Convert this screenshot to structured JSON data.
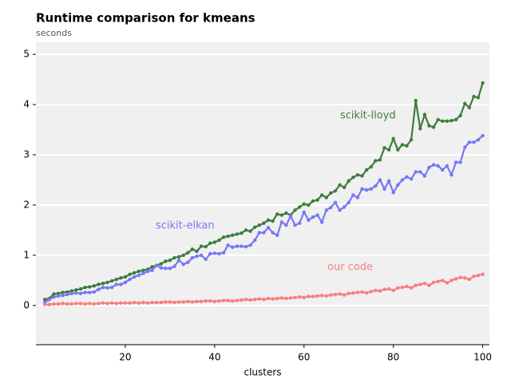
{
  "chart_data": {
    "type": "line",
    "title": "Runtime comparison for kmeans",
    "subtitle": "seconds",
    "x_label": "clusters",
    "x": [
      2,
      3,
      4,
      5,
      6,
      7,
      8,
      9,
      10,
      11,
      12,
      13,
      14,
      15,
      16,
      17,
      18,
      19,
      20,
      21,
      22,
      23,
      24,
      25,
      26,
      27,
      28,
      29,
      30,
      31,
      32,
      33,
      34,
      35,
      36,
      37,
      38,
      39,
      40,
      41,
      42,
      43,
      44,
      45,
      46,
      47,
      48,
      49,
      50,
      51,
      52,
      53,
      54,
      55,
      56,
      57,
      58,
      59,
      60,
      61,
      62,
      63,
      64,
      65,
      66,
      67,
      68,
      69,
      70,
      71,
      72,
      73,
      74,
      75,
      76,
      77,
      78,
      79,
      80,
      81,
      82,
      83,
      84,
      85,
      86,
      87,
      88,
      89,
      90,
      91,
      92,
      93,
      94,
      95,
      96,
      97,
      98,
      99,
      100
    ],
    "series": [
      {
        "name": "scikit-lloyd",
        "color": "#3d7d3d",
        "values": [
          0.12,
          0.14,
          0.23,
          0.24,
          0.26,
          0.27,
          0.29,
          0.31,
          0.33,
          0.36,
          0.37,
          0.39,
          0.42,
          0.44,
          0.46,
          0.49,
          0.52,
          0.55,
          0.57,
          0.62,
          0.65,
          0.68,
          0.7,
          0.72,
          0.77,
          0.8,
          0.83,
          0.88,
          0.9,
          0.95,
          0.97,
          1.0,
          1.05,
          1.12,
          1.08,
          1.18,
          1.17,
          1.24,
          1.26,
          1.3,
          1.36,
          1.38,
          1.4,
          1.42,
          1.44,
          1.5,
          1.48,
          1.56,
          1.6,
          1.64,
          1.7,
          1.68,
          1.82,
          1.8,
          1.84,
          1.8,
          1.9,
          1.96,
          2.02,
          2.0,
          2.08,
          2.1,
          2.2,
          2.15,
          2.24,
          2.28,
          2.4,
          2.35,
          2.48,
          2.55,
          2.6,
          2.58,
          2.7,
          2.76,
          2.88,
          2.9,
          3.14,
          3.1,
          3.32,
          3.1,
          3.2,
          3.18,
          3.3,
          4.08,
          3.52,
          3.8,
          3.58,
          3.55,
          3.7,
          3.67,
          3.67,
          3.68,
          3.7,
          3.78,
          4.02,
          3.94,
          4.16,
          4.14,
          4.43
        ]
      },
      {
        "name": "scikit-elkan",
        "color": "#7777f7",
        "values": [
          0.06,
          0.12,
          0.17,
          0.19,
          0.2,
          0.22,
          0.24,
          0.25,
          0.24,
          0.26,
          0.26,
          0.27,
          0.32,
          0.36,
          0.35,
          0.36,
          0.42,
          0.42,
          0.46,
          0.52,
          0.57,
          0.6,
          0.64,
          0.68,
          0.7,
          0.8,
          0.75,
          0.74,
          0.74,
          0.78,
          0.9,
          0.82,
          0.86,
          0.95,
          0.98,
          1.0,
          0.92,
          1.03,
          1.04,
          1.03,
          1.05,
          1.2,
          1.16,
          1.18,
          1.18,
          1.17,
          1.2,
          1.3,
          1.45,
          1.45,
          1.55,
          1.45,
          1.4,
          1.66,
          1.6,
          1.78,
          1.6,
          1.64,
          1.86,
          1.7,
          1.76,
          1.8,
          1.66,
          1.9,
          1.95,
          2.05,
          1.9,
          1.96,
          2.05,
          2.2,
          2.15,
          2.32,
          2.3,
          2.32,
          2.38,
          2.5,
          2.32,
          2.48,
          2.25,
          2.4,
          2.5,
          2.56,
          2.52,
          2.66,
          2.66,
          2.58,
          2.75,
          2.8,
          2.78,
          2.7,
          2.78,
          2.6,
          2.85,
          2.85,
          3.15,
          3.25,
          3.25,
          3.3,
          3.38
        ]
      },
      {
        "name": "our code",
        "color": "#f77f7f",
        "values": [
          0.02,
          0.02,
          0.03,
          0.03,
          0.04,
          0.03,
          0.03,
          0.04,
          0.04,
          0.03,
          0.04,
          0.03,
          0.04,
          0.05,
          0.04,
          0.05,
          0.04,
          0.05,
          0.05,
          0.05,
          0.06,
          0.05,
          0.06,
          0.05,
          0.06,
          0.06,
          0.06,
          0.07,
          0.07,
          0.06,
          0.07,
          0.07,
          0.08,
          0.07,
          0.08,
          0.08,
          0.09,
          0.09,
          0.08,
          0.09,
          0.1,
          0.1,
          0.09,
          0.1,
          0.11,
          0.12,
          0.11,
          0.12,
          0.13,
          0.12,
          0.14,
          0.13,
          0.14,
          0.15,
          0.14,
          0.15,
          0.16,
          0.17,
          0.16,
          0.18,
          0.18,
          0.19,
          0.2,
          0.19,
          0.21,
          0.22,
          0.23,
          0.21,
          0.24,
          0.25,
          0.26,
          0.27,
          0.25,
          0.28,
          0.3,
          0.29,
          0.32,
          0.33,
          0.3,
          0.35,
          0.36,
          0.38,
          0.35,
          0.4,
          0.42,
          0.44,
          0.4,
          0.46,
          0.48,
          0.5,
          0.45,
          0.5,
          0.53,
          0.56,
          0.55,
          0.52,
          0.58,
          0.6,
          0.62
        ]
      }
    ],
    "xlim": [
      0,
      101.5
    ],
    "xticks": [
      20,
      40,
      60,
      80,
      100
    ],
    "ylim": [
      -0.78,
      5.24
    ],
    "yticks": [
      0,
      1,
      2,
      3,
      4,
      5
    ],
    "grid": true
  }
}
